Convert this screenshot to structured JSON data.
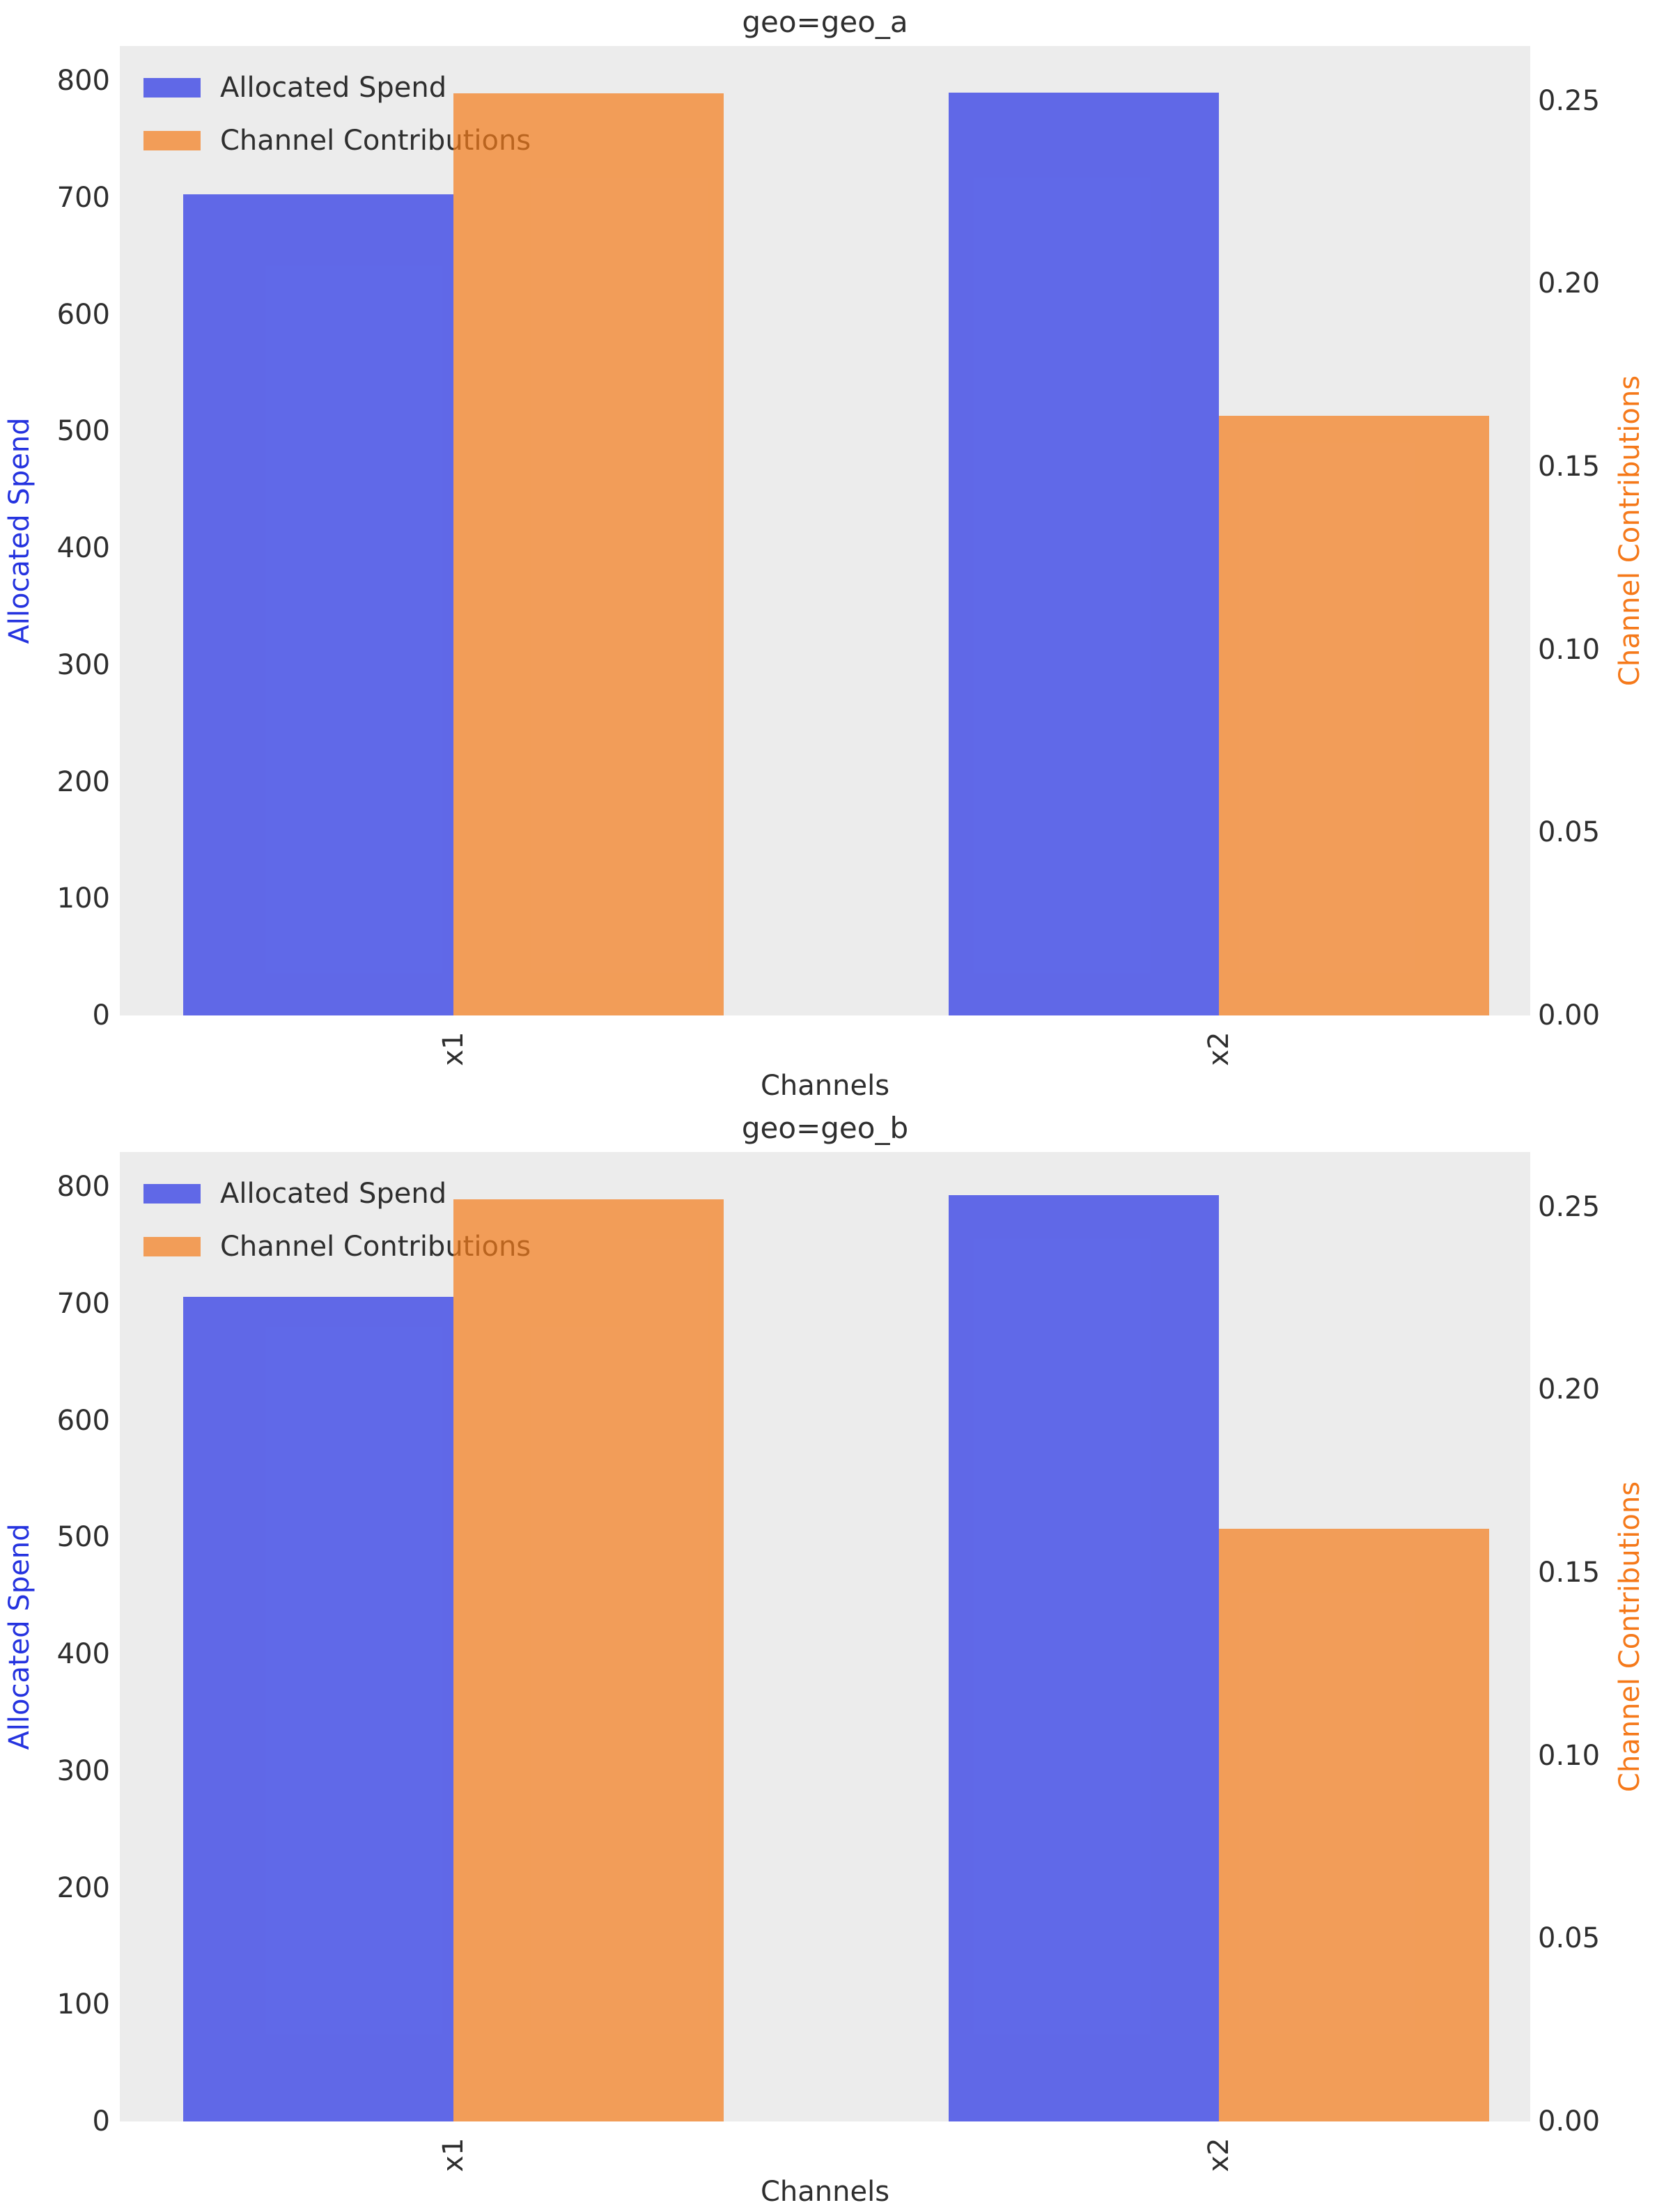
{
  "figure": {
    "background": "#FFFFFF",
    "plot_background": "#ECECEC"
  },
  "colors": {
    "allocated_spend": "#2531E6",
    "channel_contributions": "#F57C1A",
    "bar_fill_opacity": 0.7,
    "left_axis_label": "#2533DF",
    "right_axis_label": "#F5791A",
    "tick_text": "#2E2E2E",
    "plot_background": "#ECECEC",
    "figure_background": "#FFFFFF"
  },
  "legend": {
    "position": "upper left",
    "frame": false,
    "entries": [
      {
        "label": "Allocated Spend",
        "color_key": "allocated_spend"
      },
      {
        "label": "Channel Contributions",
        "color_key": "channel_contributions"
      }
    ]
  },
  "chart_data": [
    {
      "type": "bar",
      "title": "geo=geo_a",
      "categories": [
        "x1",
        "x2"
      ],
      "xlabel": "Channels",
      "grid": false,
      "legend_position": "upper left",
      "axes": {
        "left": {
          "label": "Allocated Spend",
          "ticks": [
            0,
            100,
            200,
            300,
            400,
            500,
            600,
            700,
            800
          ],
          "lim": [
            0,
            830
          ]
        },
        "right": {
          "label": "Channel Contributions",
          "ticks": [
            "0.00",
            "0.05",
            "0.10",
            "0.15",
            "0.20",
            "0.25"
          ],
          "lim": [
            0,
            0.265
          ]
        }
      },
      "series": [
        {
          "name": "Allocated Spend",
          "axis": "left",
          "color_key": "allocated_spend",
          "values": [
            703,
            790
          ]
        },
        {
          "name": "Channel Contributions",
          "axis": "right",
          "color_key": "channel_contributions",
          "values": [
            0.252,
            0.164
          ]
        }
      ]
    },
    {
      "type": "bar",
      "title": "geo=geo_b",
      "categories": [
        "x1",
        "x2"
      ],
      "xlabel": "Channels",
      "grid": false,
      "legend_position": "upper left",
      "axes": {
        "left": {
          "label": "Allocated Spend",
          "ticks": [
            0,
            100,
            200,
            300,
            400,
            500,
            600,
            700,
            800
          ],
          "lim": [
            0,
            830
          ]
        },
        "right": {
          "label": "Channel Contributions",
          "ticks": [
            "0.00",
            "0.05",
            "0.10",
            "0.15",
            "0.20",
            "0.25"
          ],
          "lim": [
            0,
            0.265
          ]
        }
      },
      "series": [
        {
          "name": "Allocated Spend",
          "axis": "left",
          "color_key": "allocated_spend",
          "values": [
            706,
            793
          ]
        },
        {
          "name": "Channel Contributions",
          "axis": "right",
          "color_key": "channel_contributions",
          "values": [
            0.252,
            0.162
          ]
        }
      ]
    }
  ]
}
